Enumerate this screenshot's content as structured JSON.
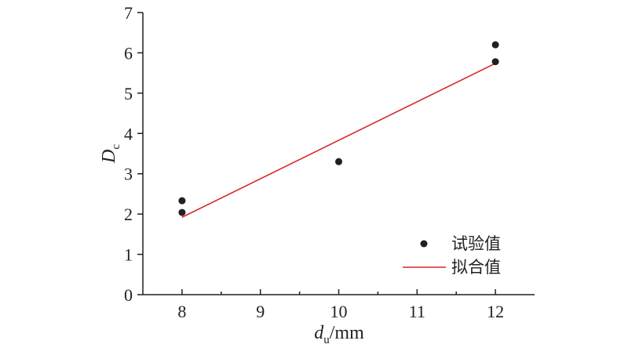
{
  "chart_data": {
    "type": "scatter",
    "xlabel": {
      "base": "d",
      "sub": "u",
      "suffix": "/mm"
    },
    "ylabel": {
      "base": "D",
      "sub": "c"
    },
    "xlim": [
      7.5,
      12.5
    ],
    "ylim": [
      0,
      7
    ],
    "xticks": [
      8,
      9,
      10,
      11,
      12
    ],
    "yticks": [
      0,
      1,
      2,
      3,
      4,
      5,
      6,
      7
    ],
    "grid": false,
    "legend_position": "bottom-right",
    "series": [
      {
        "name": "试验值",
        "kind": "scatter",
        "color": "#231f20",
        "points": [
          {
            "x": 8,
            "y": 2.33
          },
          {
            "x": 8,
            "y": 2.04
          },
          {
            "x": 10,
            "y": 3.3
          },
          {
            "x": 12,
            "y": 6.2
          },
          {
            "x": 12,
            "y": 5.78
          }
        ]
      },
      {
        "name": "拟合值",
        "kind": "line",
        "color": "#d62728",
        "points": [
          {
            "x": 8,
            "y": 1.92
          },
          {
            "x": 12,
            "y": 5.74
          }
        ]
      }
    ]
  }
}
